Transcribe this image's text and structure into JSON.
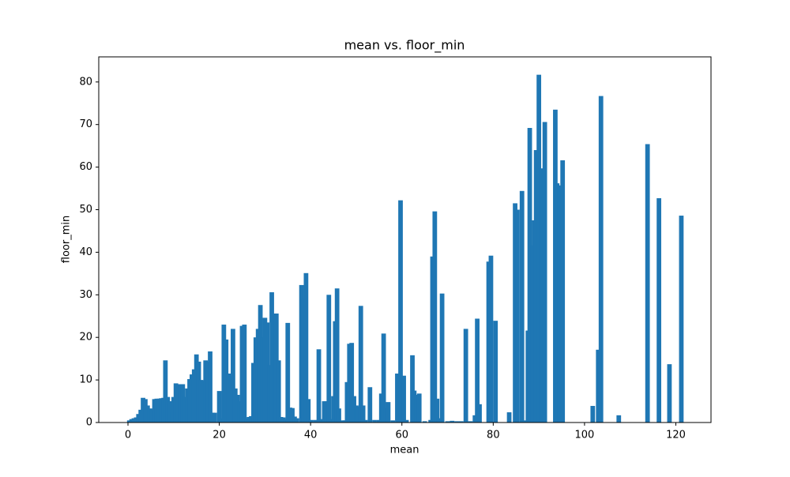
{
  "chart_data": {
    "type": "bar",
    "title": "mean vs. floor_min",
    "xlabel": "mean",
    "ylabel": "floor_min",
    "color": "#1f77b4",
    "bar_width": 1,
    "x": [
      0.3,
      0.8,
      1.3,
      1.8,
      2.3,
      2.8,
      3.3,
      3.8,
      4.3,
      4.8,
      5.3,
      5.8,
      6.3,
      6.8,
      7.3,
      7.8,
      8.2,
      8.7,
      9.2,
      9.7,
      10,
      10.5,
      11,
      11.5,
      12,
      12.5,
      13,
      13.5,
      14,
      14.5,
      15,
      15.5,
      16,
      16.5,
      17,
      17.5,
      18,
      18.5,
      19,
      20,
      20.5,
      21,
      21.5,
      22,
      22.5,
      23,
      23.5,
      24,
      24.5,
      25,
      25.5,
      26,
      26.5,
      27,
      27.5,
      28,
      28.5,
      29,
      29.5,
      30,
      30.5,
      31,
      31.5,
      32,
      32.5,
      33,
      33.5,
      34,
      34.5,
      35,
      35.5,
      36,
      36.5,
      37,
      38,
      38.5,
      39,
      39.5,
      40,
      41,
      41.8,
      42.5,
      43,
      43.5,
      44,
      44.5,
      45,
      45.4,
      45.8,
      46.2,
      47,
      47.5,
      48,
      48.5,
      49,
      49.5,
      50,
      50.5,
      51,
      51.5,
      52,
      53,
      54,
      55,
      55.5,
      56,
      56.5,
      57,
      58,
      59,
      59.7,
      60.4,
      61,
      62.3,
      62.7,
      63.3,
      63.8,
      65,
      66.3,
      66.7,
      67.2,
      67.7,
      68,
      68.8,
      70,
      71,
      72,
      73,
      74,
      75,
      76,
      76.5,
      77,
      79,
      79.5,
      80.5,
      83.5,
      84.8,
      85.3,
      86.3,
      87.2,
      87.6,
      88,
      88.6,
      89,
      89.4,
      90,
      90.5,
      90.9,
      91.3,
      93.6,
      94,
      94.5,
      95.2,
      101.8,
      103,
      103.6,
      107.5,
      113.8,
      116.3,
      118.6,
      121.2
    ],
    "values": [
      0.5,
      0.8,
      1,
      1.2,
      2,
      3,
      5.8,
      5.5,
      4,
      3.3,
      3.2,
      5.5,
      5.6,
      5.6,
      5.7,
      5.8,
      14.6,
      6,
      5,
      2.3,
      6,
      9.2,
      9,
      9,
      9,
      6,
      8,
      10.2,
      11.3,
      12.5,
      16,
      14.3,
      10,
      9.8,
      14.6,
      14.3,
      16.7,
      2.3,
      2.3,
      7.4,
      1,
      23,
      19.5,
      11.5,
      11,
      22,
      8,
      6.5,
      5,
      22.7,
      23,
      1,
      1.3,
      1.5,
      14,
      20,
      22,
      27.6,
      20,
      24.6,
      23.5,
      13.5,
      30.6,
      25.6,
      25.6,
      14.6,
      1.3,
      1.2,
      0.8,
      23.4,
      3.5,
      3.4,
      1.4,
      1,
      32.3,
      29.2,
      35.1,
      5.5,
      0.6,
      0.6,
      17.2,
      0.8,
      5,
      5,
      30,
      0.8,
      6.2,
      23.8,
      31.5,
      3.3,
      0.5,
      0.5,
      9.5,
      18.5,
      18.7,
      6.2,
      4,
      3.7,
      27.4,
      4,
      0.6,
      8.3,
      0.6,
      0.6,
      6.8,
      20.9,
      3.5,
      4.8,
      0.5,
      11.5,
      52.2,
      11,
      0.6,
      15.8,
      7.5,
      6.5,
      6.8,
      0.3,
      0.6,
      39,
      49.6,
      5.6,
      1,
      30.3,
      0.3,
      0.4,
      0.3,
      0.3,
      22,
      0.3,
      1.7,
      24.4,
      4.3,
      37.8,
      39.2,
      23.9,
      2.4,
      51.5,
      50,
      54.4,
      0.5,
      21.6,
      69.2,
      41.6,
      47.5,
      64,
      81.7,
      59.7,
      52.8,
      70.6,
      73.5,
      56.2,
      55.7,
      61.6,
      3.9,
      17.1,
      76.7,
      1.7,
      65.4,
      52.7,
      13.7,
      48.6
    ],
    "xlim": [
      -6.4,
      127.7
    ],
    "ylim": [
      0,
      85.9
    ],
    "xticks": [
      0,
      20,
      40,
      60,
      80,
      100,
      120
    ],
    "yticks": [
      0,
      10,
      20,
      30,
      40,
      50,
      60,
      70,
      80
    ]
  }
}
